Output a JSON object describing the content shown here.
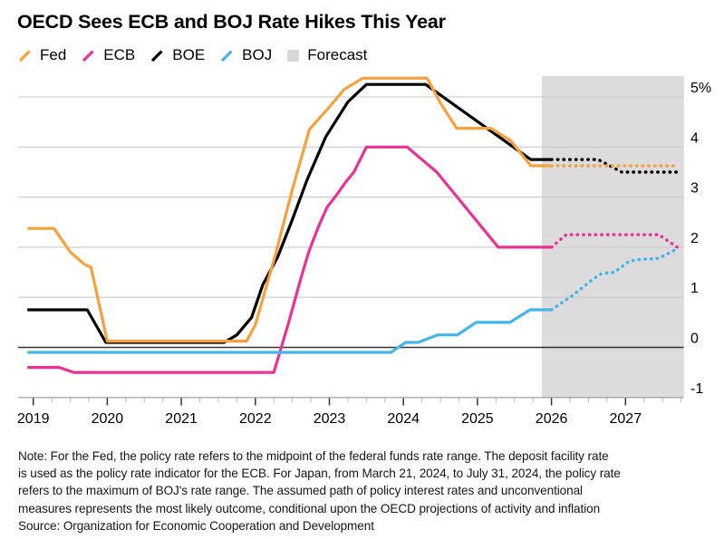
{
  "title": "OECD Sees ECB and BOJ Rate Hikes This Year",
  "legend": {
    "items": [
      {
        "id": "fed",
        "label": "Fed",
        "color": "#F6A13C",
        "swatch": "line"
      },
      {
        "id": "ecb",
        "label": "ECB",
        "color": "#ED3096",
        "swatch": "line"
      },
      {
        "id": "boe",
        "label": "BOE",
        "color": "#000000",
        "swatch": "line"
      },
      {
        "id": "boj",
        "label": "BOJ",
        "color": "#45B5E9",
        "swatch": "line"
      },
      {
        "id": "forecast",
        "label": "Forecast",
        "color": "#D9D9D9",
        "swatch": "box"
      }
    ]
  },
  "note": {
    "lines": [
      "Note: For the Fed, the policy rate refers to the midpoint of the federal funds rate range. The deposit facility rate",
      "is used as the policy rate indicator for the ECB. For Japan, from March 21, 2024, to July 31, 2024, the policy rate",
      "refers to the maximum of BOJ's rate range. The assumed path of policy interest rates and unconventional",
      "measures represents the most likely outcome, conditional upon the OECD projections of activity and inflation",
      "Source: Organization for Economic Cooperation and Development"
    ]
  },
  "chart_data": {
    "type": "line",
    "title": "OECD Sees ECB and BOJ Rate Hikes This Year",
    "unit": "%",
    "x_axis": {
      "ticks": [
        2019,
        2020,
        2021,
        2022,
        2023,
        2024,
        2025,
        2026,
        2027
      ],
      "minor_tick_step": 0.25,
      "range": [
        2018.79,
        2027.79
      ]
    },
    "y_axis": {
      "ticks": [
        {
          "value": 5,
          "label": "5%"
        },
        {
          "value": 4,
          "label": "4"
        },
        {
          "value": 3,
          "label": "3"
        },
        {
          "value": 2,
          "label": "2"
        },
        {
          "value": 1,
          "label": "1"
        },
        {
          "value": 0,
          "label": "0"
        },
        {
          "value": -1,
          "label": "-1"
        }
      ],
      "range": [
        -1,
        5.42
      ],
      "grid": true,
      "zero_line": true
    },
    "forecast_region": {
      "label": "Forecast",
      "x_start": 2025.87,
      "x_end": 2027.79,
      "fill": "#DCDCDC"
    },
    "series": [
      {
        "name": "BOE",
        "color": "#000000",
        "solid": [
          [
            2018.92,
            0.75
          ],
          [
            2019.73,
            0.75
          ],
          [
            2019.98,
            0.1
          ],
          [
            2021.58,
            0.1
          ],
          [
            2021.75,
            0.25
          ],
          [
            2021.95,
            0.6
          ],
          [
            2022.1,
            1.25
          ],
          [
            2022.3,
            1.8
          ],
          [
            2022.5,
            2.55
          ],
          [
            2022.7,
            3.35
          ],
          [
            2022.95,
            4.2
          ],
          [
            2023.25,
            4.9
          ],
          [
            2023.5,
            5.25
          ],
          [
            2024.3,
            5.25
          ],
          [
            2025.72,
            3.75
          ],
          [
            2026.0,
            3.75
          ]
        ],
        "forecast_dotted": [
          [
            2026.0,
            3.75
          ],
          [
            2026.63,
            3.75
          ],
          [
            2026.95,
            3.5
          ],
          [
            2027.7,
            3.5
          ]
        ]
      },
      {
        "name": "Fed",
        "color": "#F6A13C",
        "solid": [
          [
            2018.92,
            2.375
          ],
          [
            2019.28,
            2.375
          ],
          [
            2019.5,
            1.9
          ],
          [
            2019.7,
            1.65
          ],
          [
            2019.78,
            1.6
          ],
          [
            2020.0,
            0.125
          ],
          [
            2021.88,
            0.125
          ],
          [
            2022.0,
            0.45
          ],
          [
            2022.28,
            1.9
          ],
          [
            2022.5,
            3.15
          ],
          [
            2022.73,
            4.35
          ],
          [
            2023.0,
            4.8
          ],
          [
            2023.2,
            5.15
          ],
          [
            2023.45,
            5.375
          ],
          [
            2024.32,
            5.375
          ],
          [
            2024.5,
            4.875
          ],
          [
            2024.72,
            4.375
          ],
          [
            2025.18,
            4.375
          ],
          [
            2025.45,
            4.125
          ],
          [
            2025.72,
            3.625
          ],
          [
            2026.0,
            3.625
          ]
        ],
        "forecast_dotted": [
          [
            2026.0,
            3.625
          ],
          [
            2027.7,
            3.625
          ]
        ]
      },
      {
        "name": "ECB",
        "color": "#ED3096",
        "solid": [
          [
            2018.92,
            -0.4
          ],
          [
            2019.35,
            -0.4
          ],
          [
            2019.55,
            -0.5
          ],
          [
            2022.25,
            -0.5
          ],
          [
            2022.45,
            0.5
          ],
          [
            2022.6,
            1.3
          ],
          [
            2022.72,
            1.9
          ],
          [
            2022.85,
            2.4
          ],
          [
            2022.97,
            2.8
          ],
          [
            2023.1,
            3.05
          ],
          [
            2023.22,
            3.3
          ],
          [
            2023.33,
            3.5
          ],
          [
            2023.5,
            4.0
          ],
          [
            2024.05,
            4.0
          ],
          [
            2024.45,
            3.5
          ],
          [
            2025.28,
            2.0
          ],
          [
            2026.0,
            2.0
          ]
        ],
        "forecast_dotted": [
          [
            2026.0,
            2.0
          ],
          [
            2026.2,
            2.25
          ],
          [
            2027.45,
            2.25
          ],
          [
            2027.7,
            2.0
          ]
        ]
      },
      {
        "name": "BOJ",
        "color": "#45B5E9",
        "solid": [
          [
            2018.92,
            -0.1
          ],
          [
            2023.83,
            -0.1
          ],
          [
            2024.03,
            0.1
          ],
          [
            2024.2,
            0.1
          ],
          [
            2024.46,
            0.25
          ],
          [
            2024.73,
            0.25
          ],
          [
            2024.98,
            0.5
          ],
          [
            2025.44,
            0.5
          ],
          [
            2025.71,
            0.75
          ],
          [
            2026.0,
            0.75
          ]
        ],
        "forecast_dotted": [
          [
            2026.0,
            0.75
          ],
          [
            2026.3,
            1.05
          ],
          [
            2026.55,
            1.35
          ],
          [
            2026.68,
            1.48
          ],
          [
            2026.85,
            1.5
          ],
          [
            2027.05,
            1.72
          ],
          [
            2027.15,
            1.75
          ],
          [
            2027.45,
            1.78
          ],
          [
            2027.7,
            1.97
          ]
        ]
      }
    ],
    "style": {
      "gridline_color": "#CACACA",
      "zero_line_color": "#333333",
      "axis_line_color": "#999999",
      "major_tick_color": "#333333",
      "minor_tick_color": "#BDBDBD",
      "label_color": "#000000"
    }
  }
}
